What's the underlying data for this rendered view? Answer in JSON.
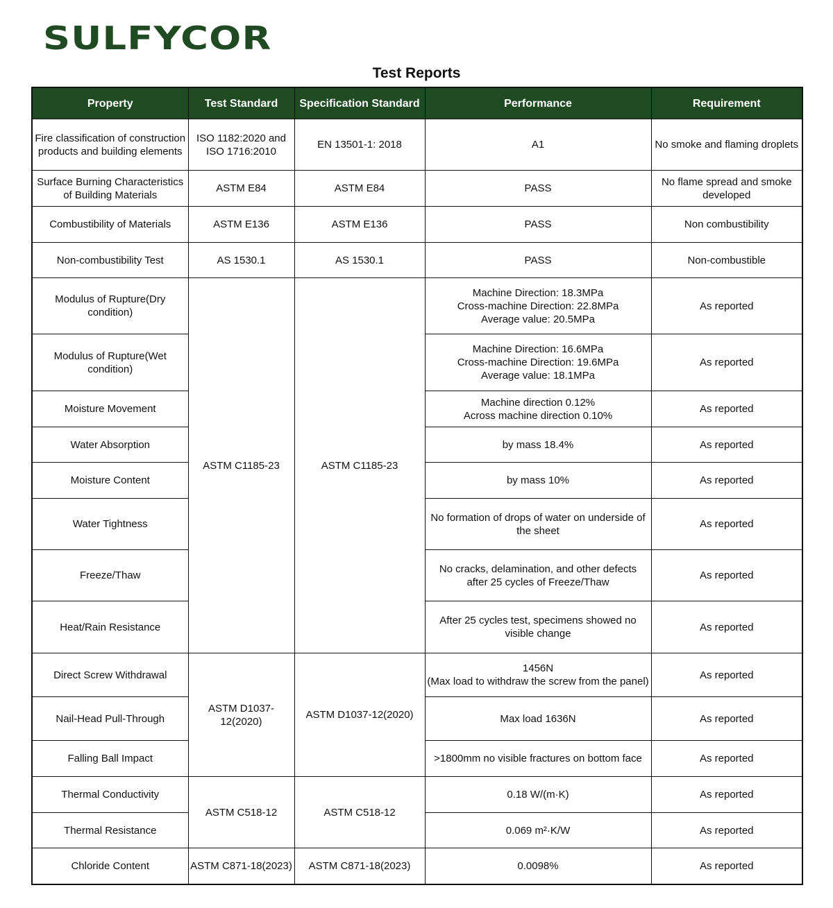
{
  "brand": {
    "logo_text": "SULFYCOR",
    "color": "#1f4a22"
  },
  "title": "Test Reports",
  "columns": [
    "Property",
    "Test Standard",
    "Specification Standard",
    "Performance",
    "Requirement"
  ],
  "rows": [
    {
      "property": "Fire classification of construction\nproducts and building elements",
      "test_standard": "ISO 1182:2020 and\nISO 1716:2010",
      "spec_standard": "EN 13501-1: 2018",
      "performance": "A1",
      "requirement": "No smoke and flaming droplets"
    },
    {
      "property": "Surface Burning Characteristics\nof Building Materials",
      "test_standard": "ASTM E84",
      "spec_standard": "ASTM E84",
      "performance": "PASS",
      "requirement": "No flame spread and smoke\ndeveloped"
    },
    {
      "property": "Combustibility of Materials",
      "test_standard": "ASTM E136",
      "spec_standard": "ASTM E136",
      "performance": "PASS",
      "requirement": "Non combustibility"
    },
    {
      "property": "Non-combustibility Test",
      "test_standard": "AS 1530.1",
      "spec_standard": "AS 1530.1",
      "performance": "PASS",
      "requirement": "Non-combustible"
    },
    {
      "property": "Modulus of Rupture(Dry\ncondition)",
      "test_standard": "ASTM C1185-23",
      "spec_standard": "ASTM C1185-23",
      "performance": "Machine Direction: 18.3MPa\nCross-machine Direction: 22.8MPa\nAverage value: 20.5MPa",
      "requirement": "As reported"
    },
    {
      "property": "Modulus of Rupture(Wet\ncondition)",
      "performance": "Machine Direction: 16.6MPa\nCross-machine Direction: 19.6MPa\nAverage value: 18.1MPa",
      "requirement": "As reported"
    },
    {
      "property": "Moisture Movement",
      "performance": "Machine direction 0.12%\nAcross machine direction 0.10%",
      "requirement": "As reported"
    },
    {
      "property": "Water Absorption",
      "performance": "by mass 18.4%",
      "requirement": "As reported"
    },
    {
      "property": "Moisture Content",
      "performance": "by mass 10%",
      "requirement": "As reported"
    },
    {
      "property": "Water Tightness",
      "performance": "No formation of drops of water on underside of\nthe sheet",
      "requirement": "As reported"
    },
    {
      "property": "Freeze/Thaw",
      "performance": "No cracks, delamination, and other defects\nafter 25 cycles of Freeze/Thaw",
      "requirement": "As reported"
    },
    {
      "property": "Heat/Rain Resistance",
      "performance": "After 25 cycles test, specimens showed no\nvisible change",
      "requirement": "As reported"
    },
    {
      "property": "Direct Screw Withdrawal",
      "test_standard": "ASTM D1037-\n12(2020)",
      "spec_standard": "ASTM D1037-12(2020)",
      "performance": "1456N\n(Max load to withdraw the screw from the panel)",
      "requirement": "As reported"
    },
    {
      "property": "Nail-Head Pull-Through",
      "performance": "Max load 1636N",
      "requirement": "As reported"
    },
    {
      "property": "Falling Ball Impact",
      "performance": ">1800mm no visible fractures on bottom face",
      "requirement": "As reported"
    },
    {
      "property": "Thermal Conductivity",
      "test_standard": "ASTM C518-12",
      "spec_standard": "ASTM C518-12",
      "performance": "0.18 W/(m·K)",
      "requirement": "As reported"
    },
    {
      "property": "Thermal Resistance",
      "performance": "0.069 m²·K/W",
      "requirement": "As reported"
    },
    {
      "property": "Chloride Content",
      "test_standard": "ASTM C871-18(2023)",
      "spec_standard": "ASTM C871-18(2023)",
      "performance": "0.0098%",
      "requirement": "As reported"
    }
  ]
}
